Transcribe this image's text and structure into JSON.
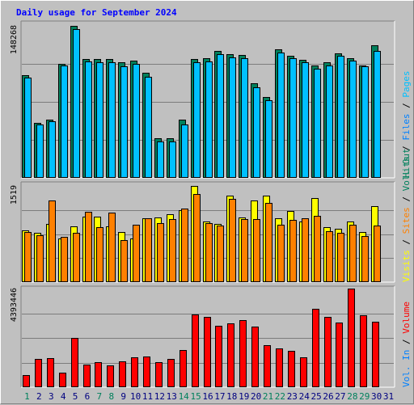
{
  "title": "Daily usage for September 2024",
  "colors": {
    "hits": "#00805c",
    "files": "#00c0ff",
    "visits": "#ffff00",
    "sites": "#ff8000",
    "kbytes": "#ff0000",
    "background": "#c0c0c0",
    "panel": "#c0c0c0",
    "weekday_label": "#000080",
    "weekend_label": "#00805c"
  },
  "legend": {
    "top": [
      "Hits",
      "Files",
      "Pages"
    ],
    "top_colors": [
      "#00805c",
      "#0080ff",
      "#00c0ff"
    ],
    "middle": [
      "Visits",
      "Sites",
      "Vol. Out"
    ],
    "middle_colors": [
      "#ffff00",
      "#ff8000",
      "#00805c"
    ],
    "bottom": [
      "Vol. In",
      "Volume"
    ],
    "bottom_colors": [
      "#0080ff",
      "#ff0000"
    ]
  },
  "chart_data": {
    "type": "bar",
    "categories": [
      "1",
      "2",
      "3",
      "4",
      "5",
      "6",
      "7",
      "8",
      "9",
      "10",
      "11",
      "12",
      "13",
      "14",
      "15",
      "16",
      "17",
      "18",
      "19",
      "20",
      "21",
      "22",
      "23",
      "24",
      "25",
      "26",
      "27",
      "28",
      "29",
      "30",
      "31"
    ],
    "weekend_days": [
      "1",
      "7",
      "8",
      "14",
      "15",
      "21",
      "22",
      "28",
      "29"
    ],
    "panels": [
      {
        "name": "hits-files",
        "max_label": "148268",
        "ymax": 148268,
        "series": [
          {
            "name": "Hits",
            "values": [
              100200,
              53700,
              56900,
              111400,
              148268,
              116200,
              115800,
              115800,
              112500,
              114300,
              102600,
              38900,
              38900,
              56400,
              116200,
              116800,
              124000,
              120700,
              119800,
              92500,
              78700,
              125600,
              119400,
              115300,
              109900,
              112800,
              121600,
              116800,
              109900,
              129500,
              null
            ]
          },
          {
            "name": "Files",
            "values": [
              98100,
              52200,
              55200,
              109900,
              145000,
              113500,
              112800,
              112800,
              108700,
              111400,
              98700,
              35800,
              35800,
              52200,
              112800,
              113500,
              120700,
              117800,
              116800,
              88700,
              76000,
              122300,
              116800,
              112800,
              106700,
              109900,
              118900,
              114300,
              108700,
              123500,
              null
            ]
          }
        ]
      },
      {
        "name": "visits-sites",
        "max_label": "1519",
        "ymax": 1519,
        "series": [
          {
            "name": "Visits",
            "values": [
              820,
              780,
              925,
              685,
              883,
              1037,
              1037,
              880,
              797,
              687,
              1009,
              1025,
              1075,
              1132,
              1519,
              958,
              916,
              1367,
              1021,
              1290,
              1360,
              1003,
              1118,
              956,
              1326,
              863,
              838,
              956,
              794,
              1205,
              null
            ]
          },
          {
            "name": "Sites",
            "values": [
              790,
              740,
              1283,
              716,
              781,
              1111,
              865,
              1099,
              665,
              911,
              1007,
              928,
              1002,
              1159,
              1393,
              932,
              897,
              1314,
              998,
              993,
              1252,
              912,
              987,
              1006,
              1051,
              809,
              778,
              909,
              733,
              895,
              null
            ]
          }
        ]
      },
      {
        "name": "volume",
        "max_label": "4393446",
        "ymax": 4393446,
        "series": [
          {
            "name": "Volume",
            "values": [
              542000,
              1260000,
              1290000,
              659000,
              2194000,
              1020000,
              1110000,
              971000,
              1144000,
              1327000,
              1351000,
              1118000,
              1257000,
              1642000,
              3233000,
              3145000,
              2723000,
              2838000,
              3001000,
              2697000,
              1867000,
              1722000,
              1621000,
              1325000,
              3496000,
              3148000,
              2883000,
              4393446,
              3202000,
              2932000,
              null
            ]
          }
        ]
      }
    ]
  }
}
